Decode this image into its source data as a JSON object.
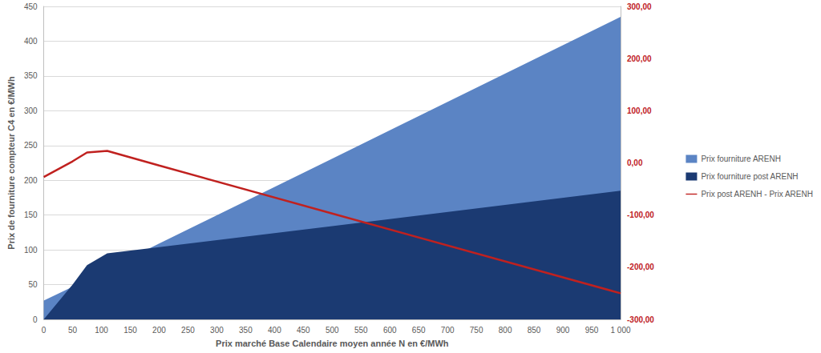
{
  "chart_data": {
    "type": "line",
    "x_label": "Prix marché Base Calendaire moyen année N en €/MWh",
    "y_label": "Prix de fourniture compteur C4 en €/MWh",
    "x": [
      0,
      50,
      75,
      110,
      200,
      500,
      1000
    ],
    "xlim": [
      0,
      1000
    ],
    "xticks": [
      0,
      50,
      100,
      150,
      200,
      250,
      300,
      350,
      400,
      450,
      500,
      550,
      600,
      650,
      700,
      750,
      800,
      850,
      900,
      950,
      {
        "value": 1000,
        "label": "1 000"
      }
    ],
    "ylim": [
      0,
      450
    ],
    "yticks": [
      0,
      50,
      100,
      150,
      200,
      250,
      300,
      350,
      400,
      450
    ],
    "y2lim": [
      -300,
      300
    ],
    "y2ticks": [
      {
        "value": -300,
        "label": "-300,00"
      },
      {
        "value": -200,
        "label": "-200,00"
      },
      {
        "value": -100,
        "label": "-100,00"
      },
      {
        "value": 0,
        "label": "0,00"
      },
      {
        "value": 100,
        "label": "100,00"
      },
      {
        "value": 200,
        "label": "200,00"
      },
      {
        "value": 300,
        "label": "300,00"
      }
    ],
    "grid": true,
    "legend": "right",
    "series": [
      {
        "name": "Prix fourniture ARENH",
        "type": "area",
        "color": "#5b84c4",
        "values": [
          27,
          47,
          58,
          72,
          109,
          231,
          435
        ]
      },
      {
        "name": "Prix fourniture post ARENH",
        "type": "area",
        "color": "#1b3a72",
        "values": [
          0,
          50,
          78,
          95,
          104,
          134,
          185
        ]
      },
      {
        "name": "Prix post ARENH - Prix ARENH",
        "type": "line",
        "color": "#c0211f",
        "axis": "y2",
        "values": [
          -27,
          3,
          20,
          23,
          -5,
          -97,
          -250
        ]
      }
    ]
  }
}
